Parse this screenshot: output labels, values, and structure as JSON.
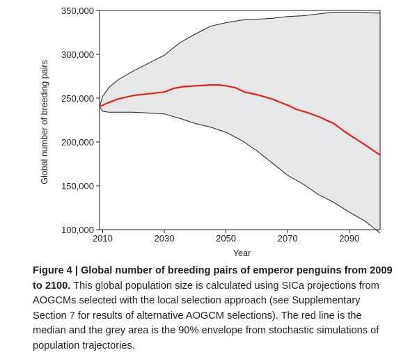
{
  "chart_data": {
    "type": "area",
    "xlabel": "Year",
    "ylabel": "Global number of breeding pairs",
    "xlim": [
      2009,
      2100
    ],
    "ylim": [
      100000,
      350000
    ],
    "xticks": [
      "2010",
      "2030",
      "2050",
      "2070",
      "2090"
    ],
    "yticks": [
      "100,000",
      "150,000",
      "200,000",
      "250,000",
      "300,000",
      "350,000"
    ],
    "grid": false,
    "series": [
      {
        "name": "median",
        "color": "#e8211d",
        "x": [
          2009,
          2010,
          2012,
          2015,
          2020,
          2025,
          2030,
          2033,
          2036,
          2040,
          2045,
          2048,
          2050,
          2053,
          2056,
          2060,
          2065,
          2070,
          2073,
          2076,
          2080,
          2085,
          2088,
          2091,
          2095,
          2100
        ],
        "values": [
          240000,
          242000,
          245000,
          249000,
          253000,
          255000,
          257000,
          261000,
          263000,
          264000,
          265000,
          265000,
          264000,
          262000,
          257000,
          254000,
          249000,
          242000,
          237000,
          234000,
          229000,
          221000,
          213000,
          206000,
          197000,
          185000
        ]
      },
      {
        "name": "90% envelope upper",
        "color": "#231f20",
        "x": [
          2009,
          2010,
          2012,
          2015,
          2020,
          2025,
          2030,
          2035,
          2040,
          2045,
          2050,
          2055,
          2060,
          2065,
          2070,
          2075,
          2080,
          2085,
          2090,
          2095,
          2098,
          2100
        ],
        "values": [
          240000,
          252000,
          262000,
          271000,
          281000,
          290000,
          299000,
          313000,
          323000,
          332000,
          336000,
          339000,
          340000,
          341000,
          343000,
          344000,
          346000,
          348000,
          348000,
          348000,
          347000,
          347000
        ]
      },
      {
        "name": "90% envelope lower",
        "color": "#231f20",
        "x": [
          2009,
          2010,
          2012,
          2015,
          2020,
          2025,
          2030,
          2035,
          2040,
          2045,
          2050,
          2055,
          2060,
          2065,
          2070,
          2075,
          2080,
          2085,
          2090,
          2095,
          2100
        ],
        "values": [
          240000,
          235000,
          234000,
          234000,
          234000,
          233000,
          232000,
          227000,
          221000,
          217000,
          211000,
          202000,
          190000,
          176000,
          162000,
          152000,
          140000,
          131000,
          120000,
          110000,
          96000
        ]
      }
    ],
    "envelope_fill": "#e6e7e8"
  },
  "caption": {
    "bold": "Figure 4 | Global number of breeding pairs of emperor penguins from 2009 to 2100.",
    "text": " This global population size is calculated using SICa projections from AOGCMs selected with the local selection approach (see Supplementary Section 7 for results of alternative AOGCM selections). The red line is the median and the grey area is the 90% envelope from stochastic simulations of population trajectories."
  }
}
